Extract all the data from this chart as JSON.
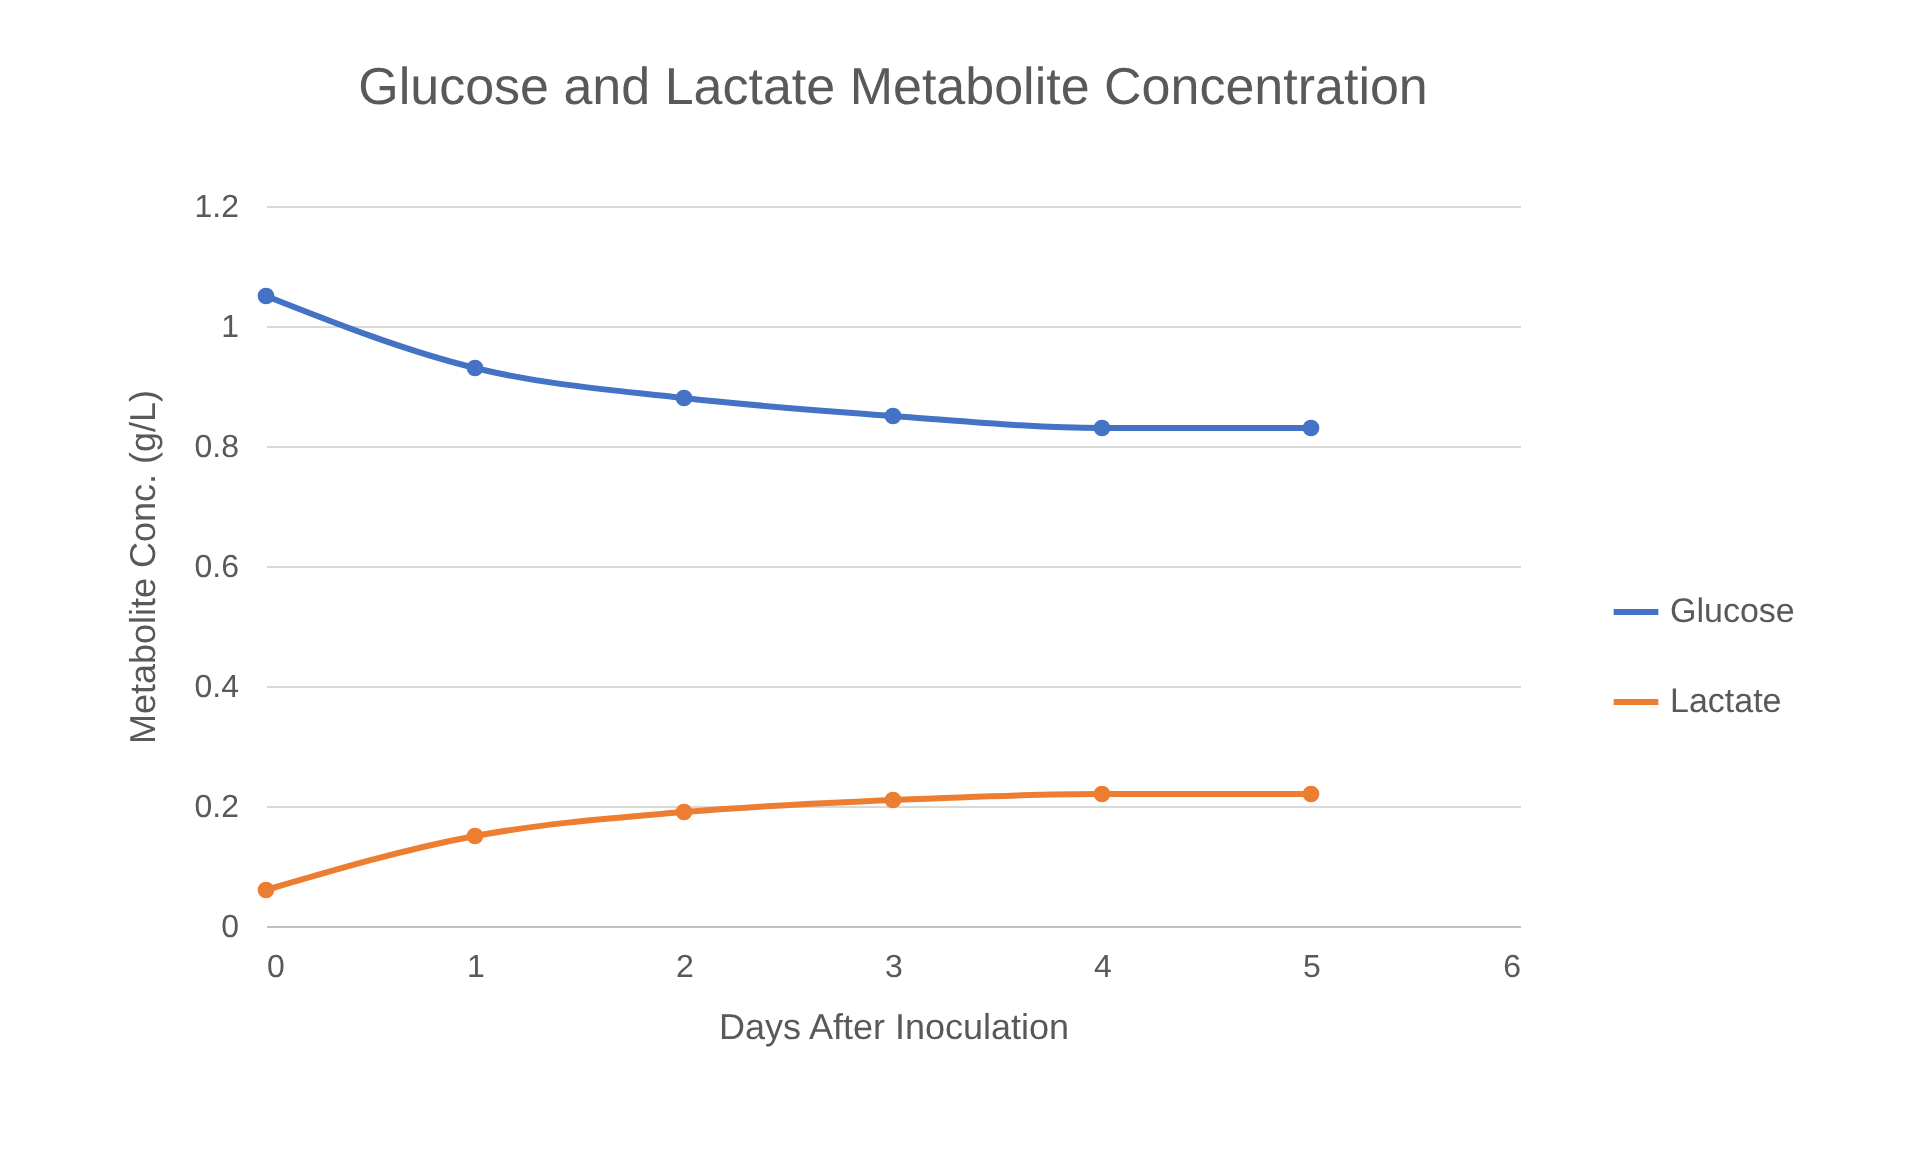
{
  "chart_data": {
    "type": "line",
    "title": "Glucose and Lactate Metabolite Concentration",
    "xlabel": "Days After Inoculation",
    "ylabel": "Metabolite Conc. (g/L)",
    "x": [
      0,
      1,
      2,
      3,
      4,
      5
    ],
    "series": [
      {
        "name": "Glucose",
        "color": "#4472c4",
        "values": [
          1.05,
          0.93,
          0.88,
          0.85,
          0.83,
          0.83
        ]
      },
      {
        "name": "Lactate",
        "color": "#ed7d31",
        "values": [
          0.06,
          0.15,
          0.19,
          0.21,
          0.22,
          0.22
        ]
      }
    ],
    "xlim": [
      0,
      6
    ],
    "xticks": [
      0,
      1,
      2,
      3,
      4,
      5,
      6
    ],
    "ylim": [
      0,
      1.2
    ],
    "yticks": [
      0,
      0.2,
      0.4,
      0.6,
      0.8,
      1,
      1.2
    ],
    "grid": "y",
    "legend": "right",
    "marker": "circle",
    "line_style": "solid"
  }
}
